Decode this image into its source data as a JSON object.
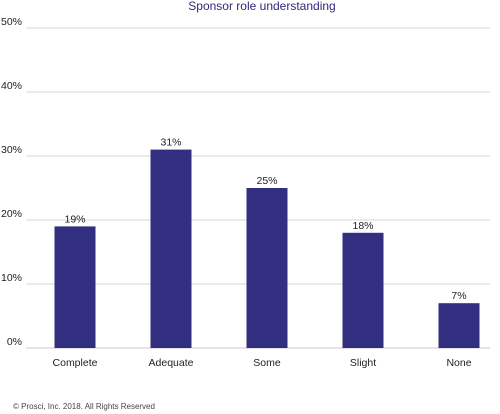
{
  "colors": {
    "bar": "#332f80",
    "title": "#2f2a7a"
  },
  "footer": "© Prosci, Inc. 2018. All Rights Reserved",
  "chart_data": {
    "type": "bar",
    "title": "Sponsor role understanding",
    "xlabel": "",
    "ylabel": "",
    "categories": [
      "Complete",
      "Adequate",
      "Some",
      "Slight",
      "None"
    ],
    "values": [
      19,
      31,
      25,
      18,
      7
    ],
    "value_labels": [
      "19%",
      "31%",
      "25%",
      "18%",
      "7%"
    ],
    "yticks": [
      "0%",
      "10%",
      "20%",
      "30%",
      "40%",
      "50%"
    ],
    "ylim": [
      0,
      50
    ],
    "grid": true,
    "legend": "none"
  }
}
